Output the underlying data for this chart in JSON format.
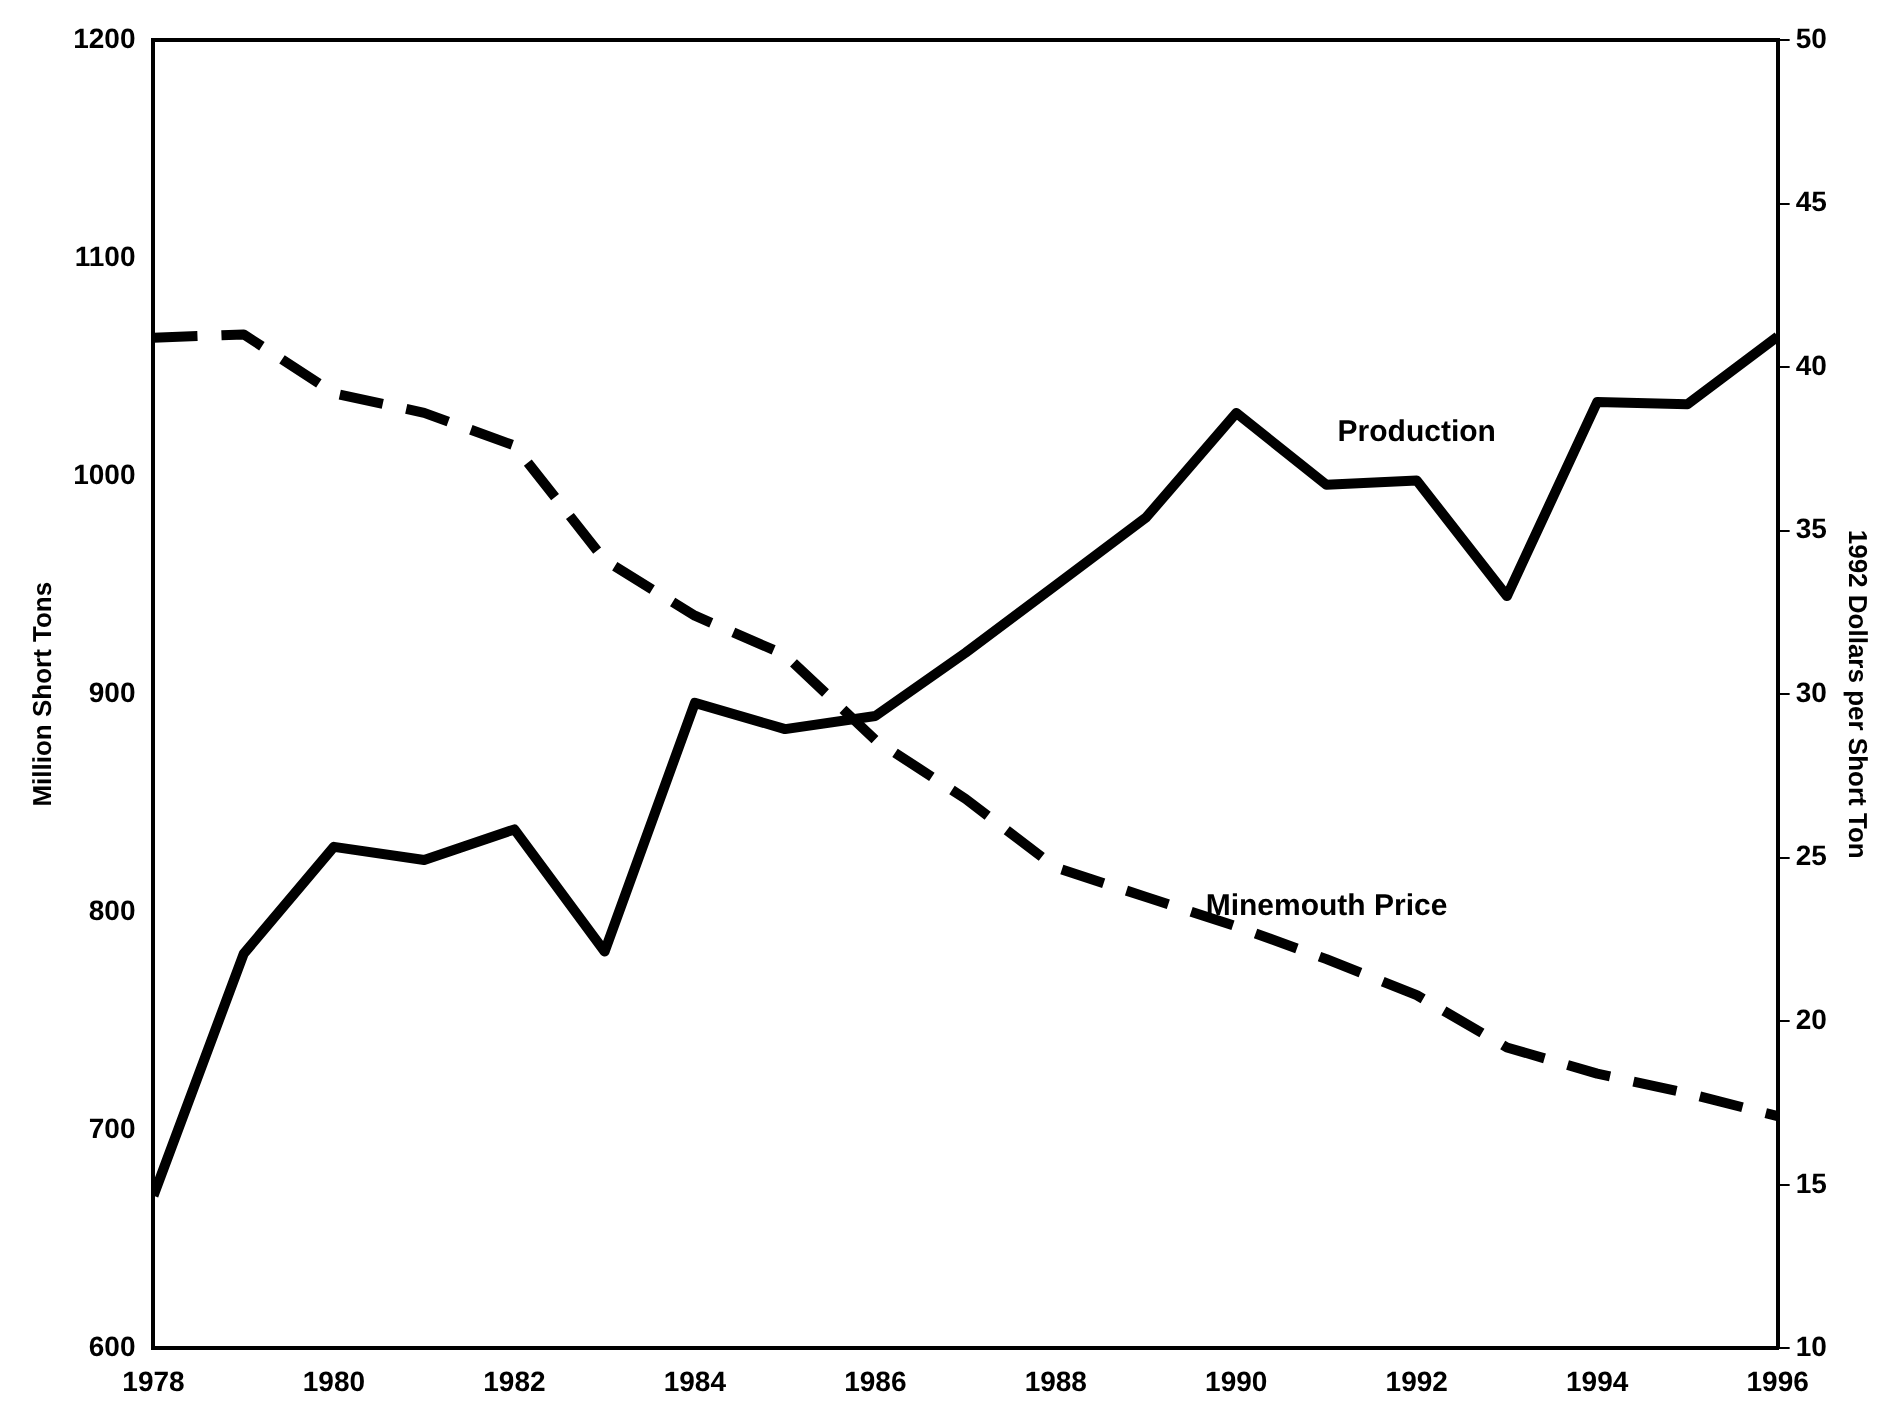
{
  "chart_data": {
    "type": "line",
    "ylabel": "Million Short Tons",
    "y2label": "1992 Dollars per Short Ton",
    "x": [
      1978,
      1979,
      1980,
      1981,
      1982,
      1983,
      1984,
      1985,
      1986,
      1987,
      1988,
      1989,
      1990,
      1991,
      1992,
      1993,
      1994,
      1995,
      1996
    ],
    "series": [
      {
        "name": "Production",
        "color": "#000000",
        "line_style": "solid",
        "values": [
          670,
          781,
          830,
          824,
          838,
          782,
          896,
          884,
          890,
          919,
          950,
          981,
          1029,
          996,
          998,
          945,
          1034,
          1033,
          1064
        ]
      },
      {
        "name": "Minemouth Price",
        "color": "#000000",
        "line_style": "dashed",
        "axis": "y2",
        "values": [
          40.9,
          41.0,
          39.2,
          38.6,
          37.6,
          34.1,
          32.4,
          31.2,
          28.6,
          26.8,
          24.7,
          23.8,
          22.9,
          21.9,
          20.8,
          19.2,
          18.4,
          17.8,
          17.1
        ]
      }
    ],
    "xlim": [
      1978,
      1996
    ],
    "xticks": [
      1978,
      1980,
      1982,
      1984,
      1986,
      1988,
      1990,
      1992,
      1994,
      1996
    ],
    "ylim": [
      600,
      1200
    ],
    "yticks": [
      600,
      700,
      800,
      900,
      1000,
      1100,
      1200
    ],
    "y2lim": [
      10,
      50
    ],
    "y2ticks": [
      10,
      15,
      20,
      25,
      30,
      35,
      40,
      45,
      50
    ],
    "grid": false,
    "legend": false,
    "marker": "none"
  }
}
